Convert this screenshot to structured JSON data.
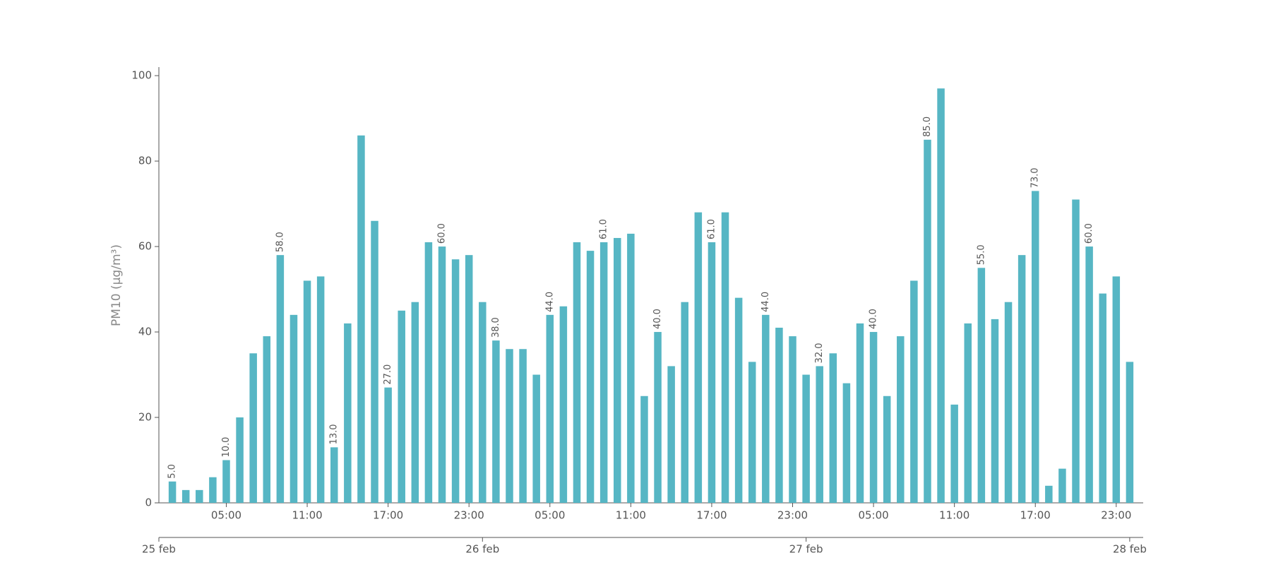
{
  "chart_data": {
    "type": "bar",
    "y_label": "PM10 (μg/m³)",
    "color": "#56b6c4",
    "x": [
      1,
      2,
      3,
      4,
      5,
      6,
      7,
      8,
      9,
      10,
      11,
      12,
      13,
      14,
      15,
      16,
      17,
      18,
      19,
      20,
      21,
      22,
      23,
      24,
      25,
      26,
      27,
      28,
      29,
      30,
      31,
      32,
      33,
      34,
      35,
      36,
      37,
      38,
      39,
      40,
      41,
      42,
      43,
      44,
      45,
      46,
      47,
      48,
      49,
      50,
      51,
      52,
      53,
      54,
      55,
      56,
      57,
      58,
      59,
      60,
      61,
      62,
      63,
      64,
      65,
      66,
      67,
      68,
      69,
      70,
      71,
      72
    ],
    "values": [
      5,
      3,
      3,
      6,
      10,
      20,
      35,
      39,
      58,
      44,
      52,
      53,
      13,
      42,
      86,
      66,
      27,
      45,
      47,
      61,
      60,
      57,
      58,
      47,
      38,
      36,
      36,
      30,
      44,
      46,
      61,
      59,
      61,
      62,
      63,
      25,
      40,
      32,
      47,
      68,
      61,
      68,
      48,
      33,
      44,
      41,
      39,
      30,
      32,
      35,
      28,
      42,
      40,
      25,
      39,
      52,
      85,
      97,
      23,
      42,
      55,
      43,
      47,
      58,
      73,
      4,
      8,
      71,
      60,
      49,
      53,
      33
    ],
    "value_labels": [
      "5.0",
      null,
      null,
      null,
      "10.0",
      null,
      null,
      null,
      "58.0",
      null,
      null,
      null,
      "13.0",
      null,
      null,
      null,
      "27.0",
      null,
      null,
      null,
      "60.0",
      null,
      null,
      null,
      "38.0",
      null,
      null,
      null,
      "44.0",
      null,
      null,
      null,
      "61.0",
      null,
      null,
      null,
      "40.0",
      null,
      null,
      null,
      "61.0",
      null,
      null,
      null,
      "44.0",
      null,
      null,
      null,
      "32.0",
      null,
      null,
      null,
      "40.0",
      null,
      null,
      null,
      "85.0",
      null,
      null,
      null,
      "55.0",
      null,
      null,
      null,
      "73.0",
      null,
      null,
      null,
      "60.0",
      null,
      null,
      null
    ],
    "xlim": [
      0,
      73
    ],
    "xticks": [
      {
        "value": 5,
        "label": "05:00"
      },
      {
        "value": 11,
        "label": "11:00"
      },
      {
        "value": 17,
        "label": "17:00"
      },
      {
        "value": 23,
        "label": "23:00"
      },
      {
        "value": 29,
        "label": "05:00"
      },
      {
        "value": 35,
        "label": "11:00"
      },
      {
        "value": 41,
        "label": "17:00"
      },
      {
        "value": 47,
        "label": "23:00"
      },
      {
        "value": 53,
        "label": "05:00"
      },
      {
        "value": 59,
        "label": "11:00"
      },
      {
        "value": 65,
        "label": "17:00"
      },
      {
        "value": 71,
        "label": "23:00"
      }
    ],
    "x2ticks": [
      {
        "value": 0,
        "label": "25 feb"
      },
      {
        "value": 24,
        "label": "26 feb"
      },
      {
        "value": 48,
        "label": "27 feb"
      },
      {
        "value": 72,
        "label": "28 feb"
      }
    ],
    "ylim": [
      0,
      102
    ],
    "yticks": [
      0,
      20,
      40,
      60,
      80,
      100
    ],
    "grid": false
  }
}
